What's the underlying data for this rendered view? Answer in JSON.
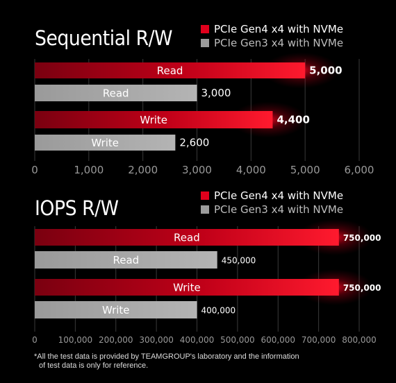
{
  "colors": {
    "red": "#d4001c",
    "gray": "#a8a8a8",
    "grid": "#3a3a3a",
    "background": "#000000"
  },
  "chart_data": [
    {
      "type": "bar",
      "orientation": "horizontal",
      "title": "Sequential R/W",
      "categories": [
        "Read",
        "Read",
        "Write",
        "Write"
      ],
      "series": [
        {
          "name": "PCIe Gen4 x4 with NVMe",
          "color": "red"
        },
        {
          "name": "PCIe Gen3 x4 with NVMe",
          "color": "gray"
        }
      ],
      "bars": [
        {
          "label": "Read",
          "series": 0,
          "value": 5000,
          "value_label": "5,000"
        },
        {
          "label": "Read",
          "series": 1,
          "value": 3000,
          "value_label": "3,000"
        },
        {
          "label": "Write",
          "series": 0,
          "value": 4400,
          "value_label": "4,400"
        },
        {
          "label": "Write",
          "series": 1,
          "value": 2600,
          "value_label": "2,600"
        }
      ],
      "xlim": [
        0,
        6000
      ],
      "ticks": [
        0,
        1000,
        2000,
        3000,
        4000,
        5000,
        6000
      ],
      "tick_labels": [
        "0",
        "1,000",
        "2,000",
        "3,000",
        "4,000",
        "5,000",
        "6,000"
      ],
      "grid": true,
      "legend_position": "top-right"
    },
    {
      "type": "bar",
      "orientation": "horizontal",
      "title": "IOPS R/W",
      "categories": [
        "Read",
        "Read",
        "Write",
        "Write"
      ],
      "series": [
        {
          "name": "PCIe Gen4 x4 with NVMe",
          "color": "red"
        },
        {
          "name": "PCIe Gen3 x4 with NVMe",
          "color": "gray"
        }
      ],
      "bars": [
        {
          "label": "Read",
          "series": 0,
          "value": 750000,
          "value_label": "750,000"
        },
        {
          "label": "Read",
          "series": 1,
          "value": 450000,
          "value_label": "450,000"
        },
        {
          "label": "Write",
          "series": 0,
          "value": 750000,
          "value_label": "750,000"
        },
        {
          "label": "Write",
          "series": 1,
          "value": 400000,
          "value_label": "400,000"
        }
      ],
      "xlim": [
        0,
        800000
      ],
      "ticks": [
        0,
        100000,
        200000,
        300000,
        400000,
        500000,
        600000,
        700000,
        800000
      ],
      "tick_labels": [
        "0",
        "100,000",
        "200,000",
        "300,000",
        "400,000",
        "500,000",
        "600,000",
        "700,000",
        "800,000"
      ],
      "grid": true,
      "legend_position": "top-right"
    }
  ],
  "note": {
    "line1": "*All the test data is provided by TEAMGROUP's laboratory and the information",
    "line2": "of test data is only for reference."
  }
}
